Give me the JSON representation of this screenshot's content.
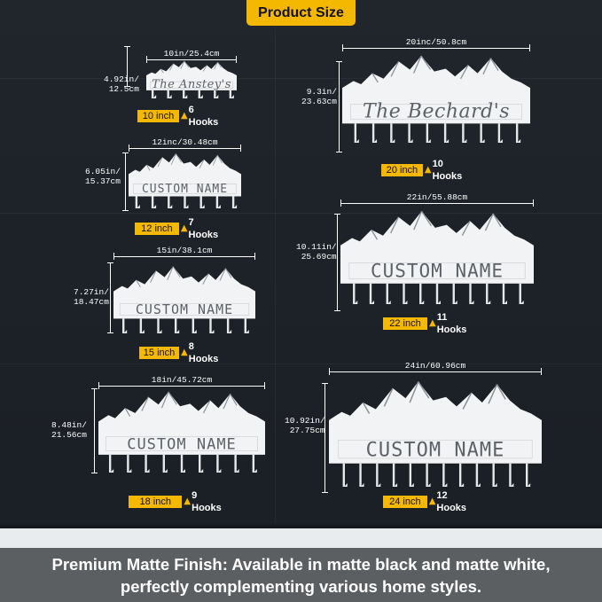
{
  "header": {
    "title": "Product Size"
  },
  "racks": [
    {
      "id": "r10",
      "width_label": "10in/25.4cm",
      "height_label": [
        "4.92in/",
        "12.5cm"
      ],
      "name_text": "The Anstey's",
      "inch_label": "10 inch",
      "hooks_label": "6 Hooks",
      "hook_count": 6
    },
    {
      "id": "r12",
      "width_label": "12inc/30.48cm",
      "height_label": [
        "6.05in/",
        "15.37cm"
      ],
      "name_text": "CUSTOM NAME",
      "inch_label": "12 inch",
      "hooks_label": "7 Hooks",
      "hook_count": 7
    },
    {
      "id": "r15",
      "width_label": "15in/38.1cm",
      "height_label": [
        "7.27in/",
        "18.47cm"
      ],
      "name_text": "CUSTOM NAME",
      "inch_label": "15 inch",
      "hooks_label": "8 Hooks",
      "hook_count": 8
    },
    {
      "id": "r18",
      "width_label": "18in/45.72cm",
      "height_label": [
        "8.48in/",
        "21.56cm"
      ],
      "name_text": "CUSTOM NAME",
      "inch_label": "18 inch",
      "hooks_label": "9 Hooks",
      "hook_count": 9
    },
    {
      "id": "r20",
      "width_label": "20inc/50.8cm",
      "height_label": [
        "9.3in/",
        "23.63cm"
      ],
      "name_text": "The Bechard's",
      "inch_label": "20 inch",
      "hooks_label": "10 Hooks",
      "hook_count": 10
    },
    {
      "id": "r22",
      "width_label": "22in/55.88cm",
      "height_label": [
        "10.11in/",
        "25.69cm"
      ],
      "name_text": "CUSTOM NAME",
      "inch_label": "22 inch",
      "hooks_label": "11 Hooks",
      "hook_count": 11
    },
    {
      "id": "r24",
      "width_label": "24in/60.96cm",
      "height_label": [
        "10.92in/",
        "27.75cm"
      ],
      "name_text": "CUSTOM NAME",
      "inch_label": "24 inch",
      "hooks_label": "12 Hooks",
      "hook_count": 12
    }
  ],
  "footer": {
    "line1": "Premium Matte Finish: Available in matte black and matte white,",
    "line2": "perfectly complementing various home styles."
  },
  "colors": {
    "accent": "#f5b800",
    "rack": "#ffffff",
    "wall": "#1d2228",
    "footer": "#5c5f61"
  }
}
